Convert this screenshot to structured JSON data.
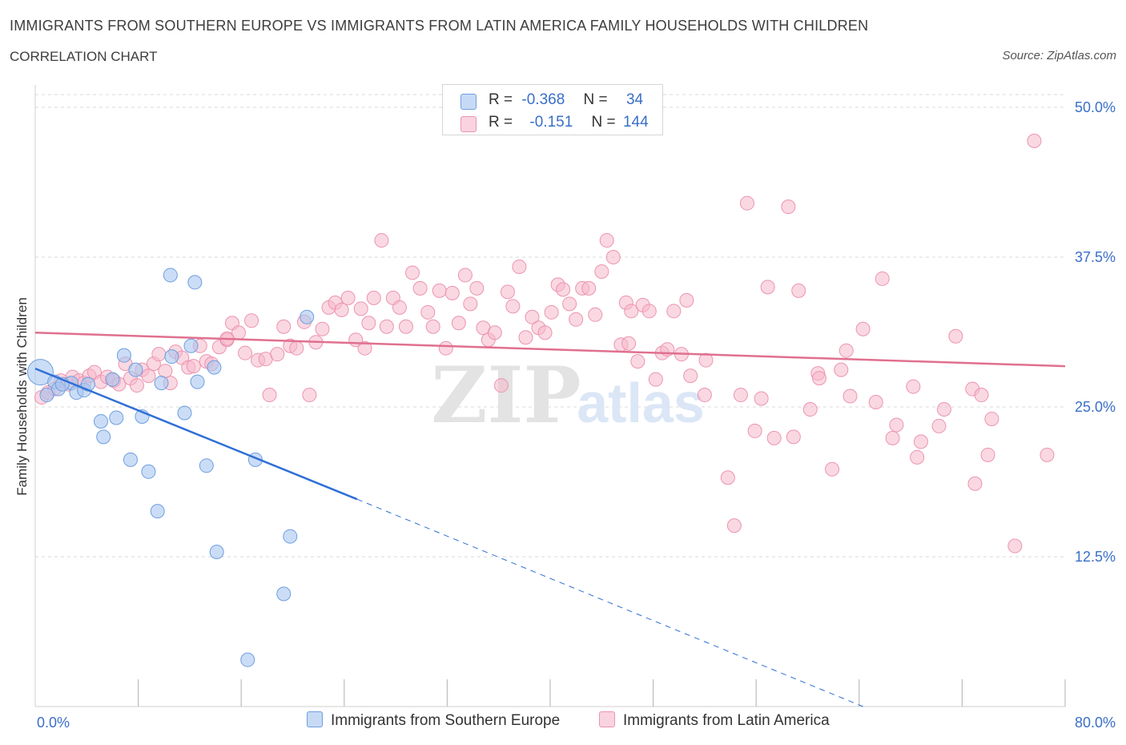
{
  "title": "IMMIGRANTS FROM SOUTHERN EUROPE VS IMMIGRANTS FROM LATIN AMERICA FAMILY HOUSEHOLDS WITH CHILDREN",
  "subtitle": "CORRELATION CHART",
  "source": "Source: ZipAtlas.com",
  "watermark": {
    "zip": "ZIP",
    "atlas": "atlas"
  },
  "legend": {
    "rows": [
      {
        "r_label": "R =",
        "r_value": "-0.368",
        "n_label": "N =",
        "n_value": "34",
        "color": "#a9c6f0"
      },
      {
        "r_label": "R =",
        "r_value": "-0.151",
        "n_label": "N =",
        "n_value": "144",
        "color": "#f5b8cb"
      }
    ]
  },
  "colors": {
    "blue_fill": "#a9c6f0",
    "blue_stroke": "#6f9ee0",
    "blue_line": "#2f6fd6",
    "pink_fill": "#f5b8cb",
    "pink_stroke": "#ec94b0",
    "pink_line": "#e0708f",
    "grid": "#d9d9d9",
    "axis_label": "#3a6fc8"
  },
  "chart_data": {
    "type": "scatter",
    "xlabel": "",
    "ylabel": "Family Households with Children",
    "xlim": [
      0,
      80
    ],
    "ylim": [
      0,
      50
    ],
    "x_tick_labels": [
      "0.0%",
      "80.0%"
    ],
    "y_ticks": [
      12.5,
      25.0,
      37.5,
      50.0
    ],
    "y_tick_labels": [
      "12.5%",
      "25.0%",
      "37.5%",
      "50.0%"
    ],
    "grid": true,
    "legend_position": "top-center",
    "series": [
      {
        "name": "Immigrants from Southern Europe",
        "r": -0.368,
        "n": 34,
        "trend": {
          "x0": 0,
          "y0": 28.2,
          "x1": 25,
          "y1": 17.3,
          "dash_to_x": 64.3,
          "dash_to_y": 0
        },
        "points": [
          [
            0.4,
            27.9
          ],
          [
            0.9,
            26.0
          ],
          [
            1.5,
            27.1
          ],
          [
            1.8,
            26.5
          ],
          [
            2.8,
            27.0
          ],
          [
            3.2,
            26.2
          ],
          [
            3.8,
            26.4
          ],
          [
            4.1,
            26.9
          ],
          [
            5.1,
            23.8
          ],
          [
            5.3,
            22.5
          ],
          [
            6.0,
            27.3
          ],
          [
            6.3,
            24.1
          ],
          [
            6.9,
            29.3
          ],
          [
            7.4,
            20.6
          ],
          [
            7.8,
            28.1
          ],
          [
            8.3,
            24.2
          ],
          [
            8.8,
            19.6
          ],
          [
            9.5,
            16.3
          ],
          [
            9.8,
            27.0
          ],
          [
            10.5,
            36.0
          ],
          [
            10.6,
            29.2
          ],
          [
            11.6,
            24.5
          ],
          [
            12.1,
            30.1
          ],
          [
            12.4,
            35.4
          ],
          [
            12.6,
            27.1
          ],
          [
            13.3,
            20.1
          ],
          [
            13.9,
            28.3
          ],
          [
            14.1,
            12.9
          ],
          [
            16.5,
            3.9
          ],
          [
            17.1,
            20.6
          ],
          [
            19.3,
            9.4
          ],
          [
            19.8,
            14.2
          ],
          [
            21.1,
            32.5
          ],
          [
            2.1,
            26.9
          ]
        ]
      },
      {
        "name": "Immigrants from Latin America",
        "r": -0.151,
        "n": 144,
        "trend": {
          "x0": 0,
          "y0": 31.2,
          "x1": 80,
          "y1": 28.4
        },
        "points": [
          [
            0.5,
            25.8
          ],
          [
            1.0,
            26.2
          ],
          [
            1.5,
            26.5
          ],
          [
            2.0,
            27.2
          ],
          [
            2.6,
            26.9
          ],
          [
            2.9,
            27.5
          ],
          [
            3.4,
            27.2
          ],
          [
            3.8,
            27.0
          ],
          [
            4.2,
            27.6
          ],
          [
            4.6,
            27.9
          ],
          [
            5.1,
            27.1
          ],
          [
            5.6,
            27.5
          ],
          [
            6.1,
            27.2
          ],
          [
            6.5,
            26.9
          ],
          [
            7.0,
            28.6
          ],
          [
            7.4,
            27.4
          ],
          [
            7.9,
            26.8
          ],
          [
            8.3,
            28.1
          ],
          [
            8.8,
            27.6
          ],
          [
            9.2,
            28.6
          ],
          [
            9.6,
            29.4
          ],
          [
            10.1,
            28.0
          ],
          [
            10.5,
            27.0
          ],
          [
            10.9,
            29.6
          ],
          [
            11.4,
            29.1
          ],
          [
            11.9,
            28.3
          ],
          [
            12.3,
            28.4
          ],
          [
            12.8,
            30.1
          ],
          [
            13.3,
            28.8
          ],
          [
            13.7,
            28.6
          ],
          [
            14.3,
            30.0
          ],
          [
            14.9,
            30.6
          ],
          [
            15.3,
            32.0
          ],
          [
            15.8,
            31.2
          ],
          [
            16.3,
            29.5
          ],
          [
            16.8,
            32.2
          ],
          [
            17.3,
            28.9
          ],
          [
            17.9,
            29.0
          ],
          [
            18.2,
            26.0
          ],
          [
            18.8,
            29.4
          ],
          [
            19.3,
            31.7
          ],
          [
            19.8,
            30.1
          ],
          [
            20.3,
            29.9
          ],
          [
            20.9,
            32.1
          ],
          [
            21.3,
            26.0
          ],
          [
            21.8,
            30.4
          ],
          [
            22.3,
            31.5
          ],
          [
            22.8,
            33.3
          ],
          [
            23.3,
            33.7
          ],
          [
            23.8,
            33.1
          ],
          [
            24.3,
            34.1
          ],
          [
            24.9,
            30.6
          ],
          [
            25.3,
            33.2
          ],
          [
            25.9,
            32.0
          ],
          [
            26.3,
            34.1
          ],
          [
            26.9,
            38.9
          ],
          [
            27.3,
            31.7
          ],
          [
            27.8,
            34.1
          ],
          [
            28.3,
            33.3
          ],
          [
            28.8,
            31.7
          ],
          [
            29.3,
            36.2
          ],
          [
            29.9,
            34.9
          ],
          [
            30.5,
            32.9
          ],
          [
            30.9,
            31.7
          ],
          [
            31.4,
            34.7
          ],
          [
            31.9,
            29.9
          ],
          [
            32.4,
            34.5
          ],
          [
            32.9,
            32.0
          ],
          [
            33.4,
            36.0
          ],
          [
            33.8,
            33.6
          ],
          [
            34.3,
            34.9
          ],
          [
            34.8,
            31.6
          ],
          [
            35.2,
            30.6
          ],
          [
            35.7,
            31.2
          ],
          [
            36.2,
            26.8
          ],
          [
            36.7,
            34.6
          ],
          [
            37.1,
            33.4
          ],
          [
            37.6,
            36.7
          ],
          [
            38.1,
            30.8
          ],
          [
            38.6,
            32.5
          ],
          [
            39.1,
            31.6
          ],
          [
            39.6,
            31.2
          ],
          [
            40.1,
            32.9
          ],
          [
            40.6,
            35.2
          ],
          [
            41.0,
            34.8
          ],
          [
            41.5,
            33.6
          ],
          [
            42.0,
            32.3
          ],
          [
            42.5,
            34.9
          ],
          [
            43.0,
            34.9
          ],
          [
            43.5,
            32.7
          ],
          [
            44.0,
            36.3
          ],
          [
            44.4,
            38.9
          ],
          [
            44.9,
            37.5
          ],
          [
            45.5,
            30.2
          ],
          [
            45.9,
            33.7
          ],
          [
            46.3,
            33.0
          ],
          [
            46.8,
            28.8
          ],
          [
            47.2,
            33.5
          ],
          [
            47.7,
            33.0
          ],
          [
            48.2,
            27.3
          ],
          [
            48.7,
            29.5
          ],
          [
            49.1,
            29.8
          ],
          [
            49.6,
            33.0
          ],
          [
            50.2,
            29.4
          ],
          [
            50.6,
            33.9
          ],
          [
            50.9,
            27.6
          ],
          [
            52.1,
            28.9
          ],
          [
            52.0,
            26.0
          ],
          [
            53.8,
            19.1
          ],
          [
            54.3,
            15.1
          ],
          [
            54.8,
            26.0
          ],
          [
            55.3,
            42.0
          ],
          [
            55.9,
            23.0
          ],
          [
            56.4,
            25.7
          ],
          [
            56.9,
            35.0
          ],
          [
            57.4,
            22.4
          ],
          [
            58.5,
            41.7
          ],
          [
            58.9,
            22.5
          ],
          [
            59.3,
            34.7
          ],
          [
            60.2,
            24.8
          ],
          [
            60.8,
            27.8
          ],
          [
            60.9,
            27.4
          ],
          [
            61.9,
            19.8
          ],
          [
            62.6,
            28.1
          ],
          [
            63.0,
            29.7
          ],
          [
            63.3,
            25.9
          ],
          [
            64.3,
            31.5
          ],
          [
            65.3,
            25.4
          ],
          [
            65.8,
            35.7
          ],
          [
            66.6,
            22.4
          ],
          [
            66.9,
            23.5
          ],
          [
            68.2,
            26.7
          ],
          [
            68.5,
            20.8
          ],
          [
            68.8,
            22.1
          ],
          [
            70.2,
            23.4
          ],
          [
            70.6,
            24.8
          ],
          [
            71.5,
            30.9
          ],
          [
            72.8,
            26.5
          ],
          [
            73.0,
            18.6
          ],
          [
            73.5,
            26.0
          ],
          [
            74.0,
            21.0
          ],
          [
            74.3,
            24.0
          ],
          [
            76.1,
            13.4
          ],
          [
            77.6,
            47.2
          ],
          [
            78.6,
            21.0
          ],
          [
            14.9,
            30.7
          ],
          [
            25.6,
            29.9
          ],
          [
            46.1,
            30.3
          ]
        ]
      }
    ]
  }
}
